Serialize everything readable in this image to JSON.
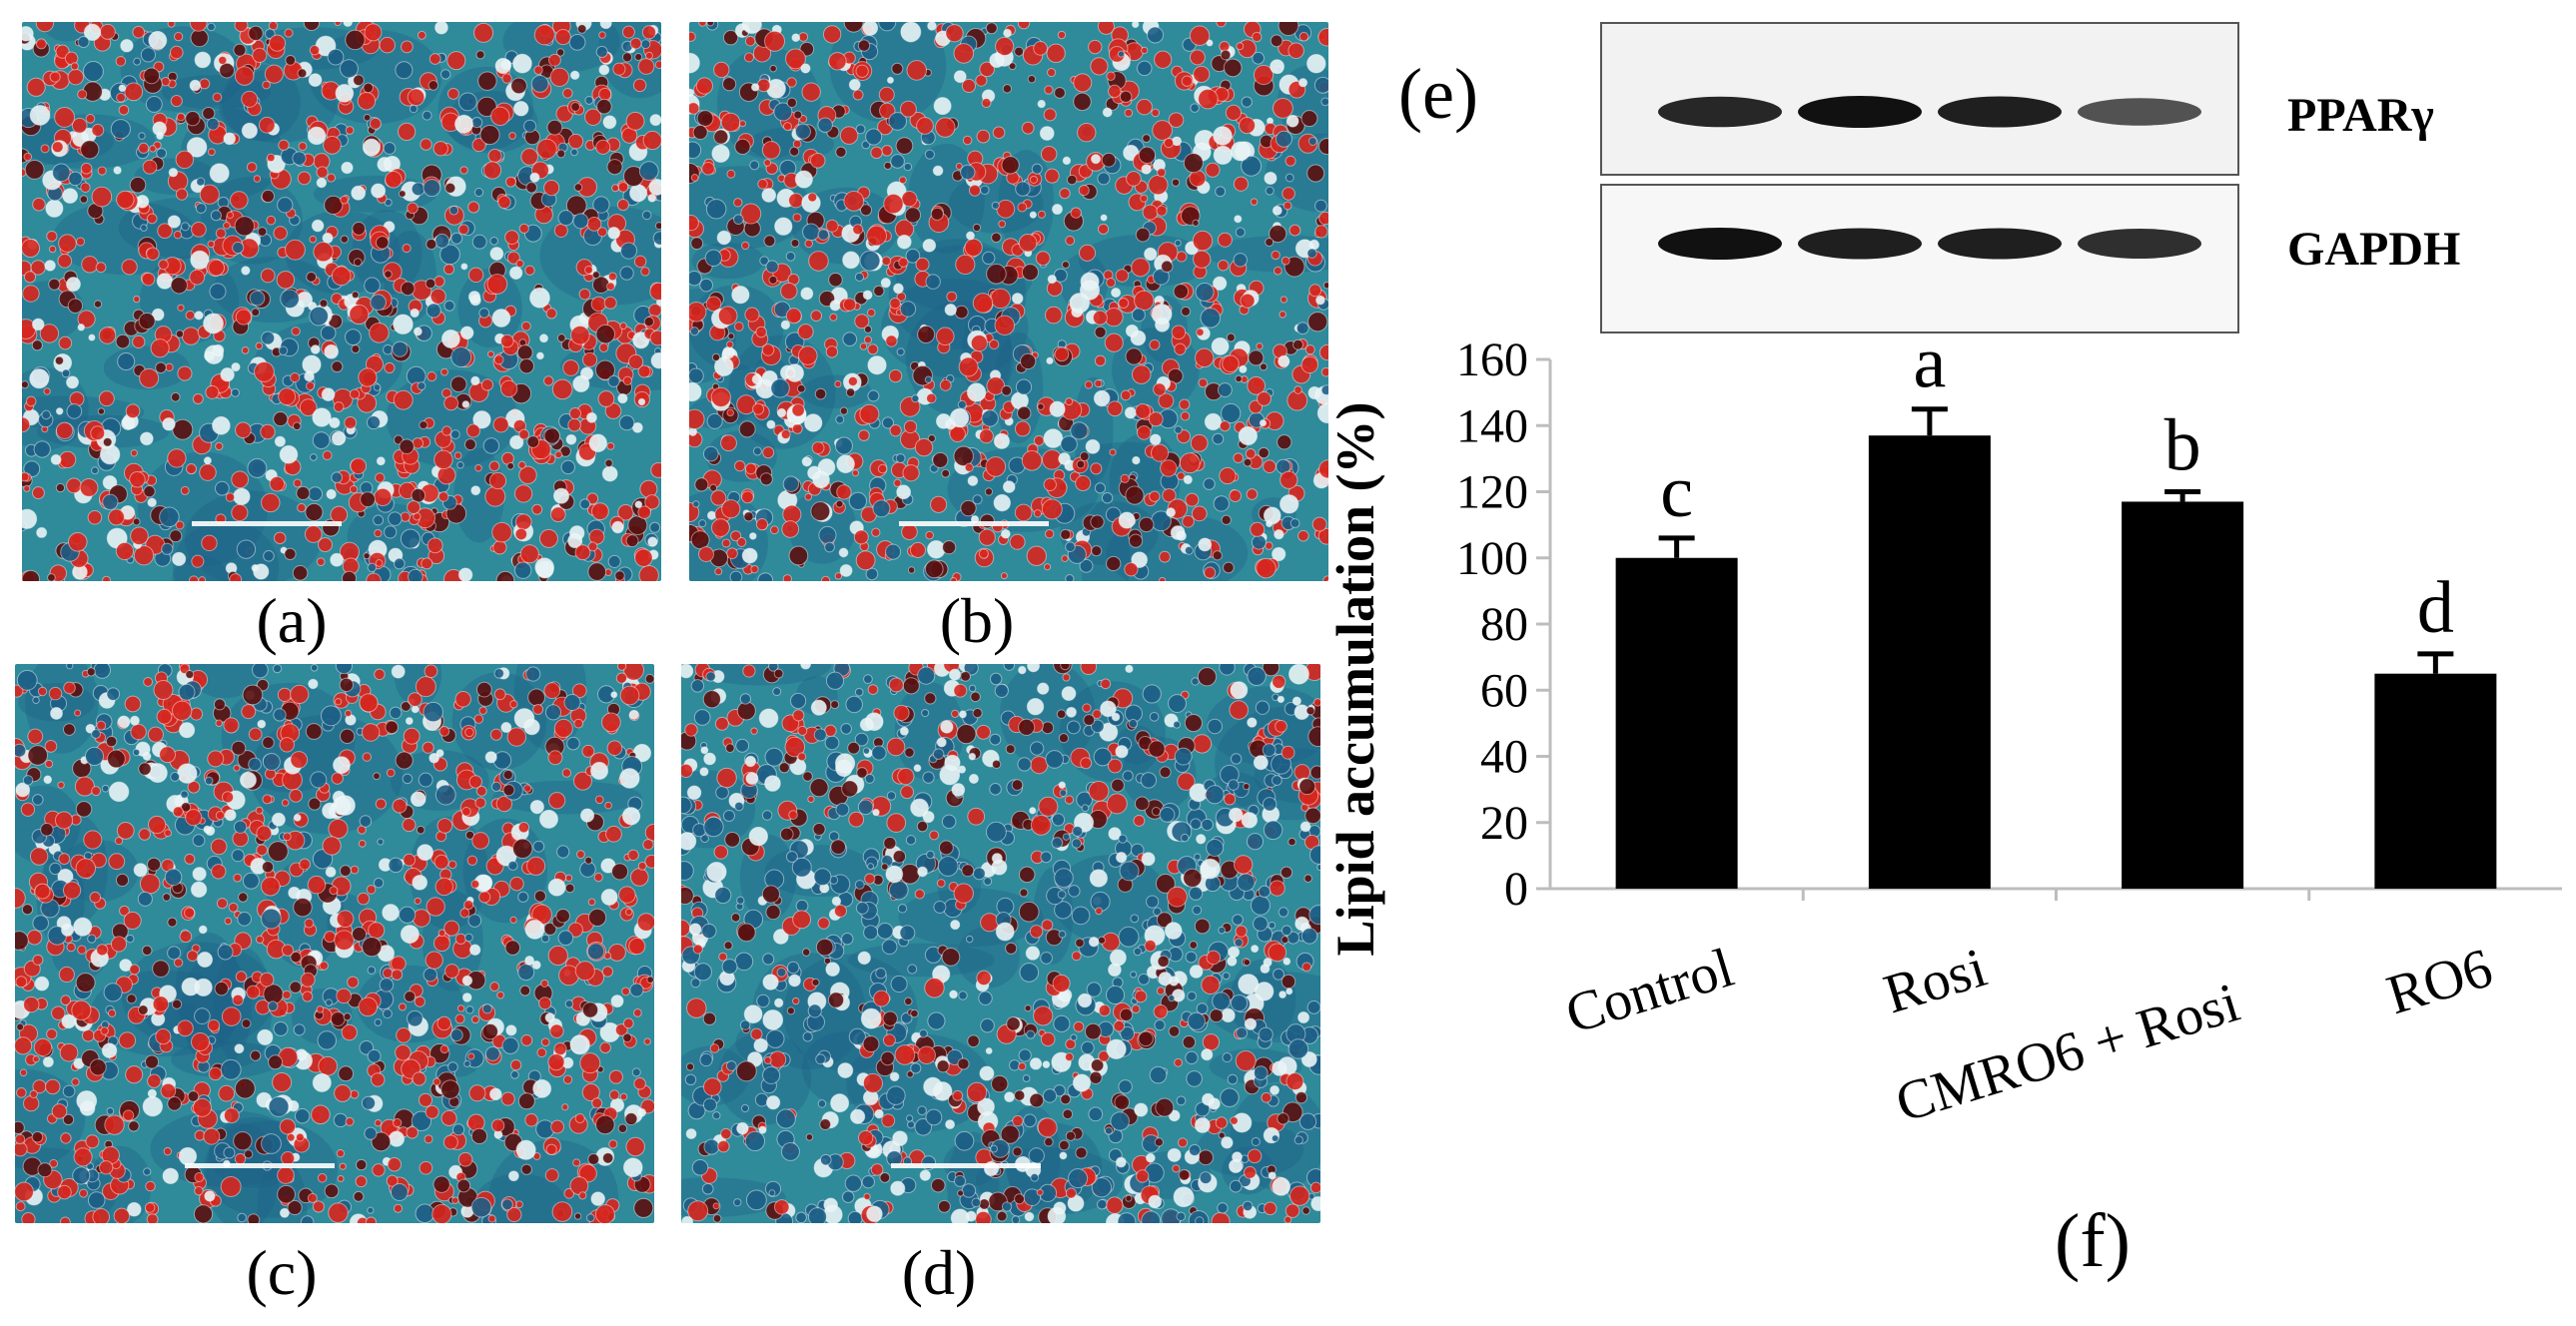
{
  "micrographs": [
    {
      "label": "(a)",
      "style": "ref",
      "seed": 11
    },
    {
      "label": "(b)",
      "style": "ref",
      "seed": 23
    },
    {
      "label": "(c)",
      "style": "ref",
      "seed": 37
    },
    {
      "label": "(d)",
      "style": "ref",
      "seed": 49
    }
  ],
  "micrograph_colors": {
    "background": "#2f8a9a",
    "cell_red": "#d7261e",
    "cell_dark": "#5a1010",
    "cell_light": "#e9f4f6",
    "cell_blue": "#1d5f86"
  },
  "blot": {
    "panel_label": "(e)",
    "rows": [
      {
        "name": "PPARγ",
        "band_intensity": [
          0.85,
          1.0,
          0.9,
          0.55
        ]
      },
      {
        "name": "GAPDH",
        "band_intensity": [
          1.0,
          0.9,
          0.9,
          0.8
        ]
      }
    ]
  },
  "figure_f_label": "(f)",
  "chart_data": {
    "type": "bar",
    "categories": [
      "Control",
      "Rosi",
      "CMRO6 + Rosi",
      "RO6"
    ],
    "values": [
      100,
      137,
      117,
      65
    ],
    "errors": [
      6,
      8,
      3,
      6
    ],
    "significance": [
      "c",
      "a",
      "b",
      "d"
    ],
    "ylabel": "Lipid accumulation (%)",
    "xlabel": "",
    "ylim": [
      0,
      160
    ],
    "yticks": [
      0,
      20,
      40,
      60,
      80,
      100,
      120,
      140,
      160
    ],
    "bar_color": "#000000",
    "grid": false
  }
}
